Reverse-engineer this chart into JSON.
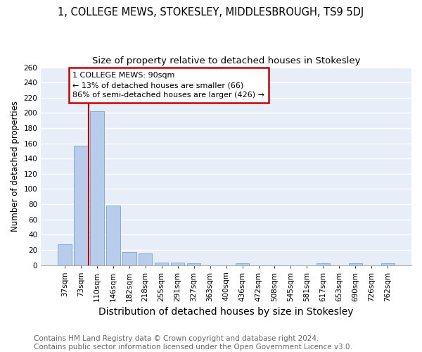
{
  "title1": "1, COLLEGE MEWS, STOKESLEY, MIDDLESBROUGH, TS9 5DJ",
  "title2": "Size of property relative to detached houses in Stokesley",
  "xlabel": "Distribution of detached houses by size in Stokesley",
  "ylabel": "Number of detached properties",
  "footnote": "Contains HM Land Registry data © Crown copyright and database right 2024.\nContains public sector information licensed under the Open Government Licence v3.0.",
  "bin_labels": [
    "37sqm",
    "73sqm",
    "110sqm",
    "146sqm",
    "182sqm",
    "218sqm",
    "255sqm",
    "291sqm",
    "327sqm",
    "363sqm",
    "400sqm",
    "436sqm",
    "472sqm",
    "508sqm",
    "545sqm",
    "581sqm",
    "617sqm",
    "653sqm",
    "690sqm",
    "726sqm",
    "762sqm"
  ],
  "bar_values": [
    27,
    157,
    202,
    78,
    17,
    15,
    3,
    3,
    2,
    0,
    0,
    2,
    0,
    0,
    0,
    0,
    2,
    0,
    2,
    0,
    2
  ],
  "bar_color": "#b8cceb",
  "bar_edge_color": "#6699cc",
  "vline_color": "#cc0000",
  "vline_x": 1.5,
  "annotation_text": "1 COLLEGE MEWS: 90sqm\n← 13% of detached houses are smaller (66)\n86% of semi-detached houses are larger (426) →",
  "annotation_box_color": "white",
  "annotation_box_edge": "#cc0000",
  "ylim": [
    0,
    260
  ],
  "yticks": [
    0,
    20,
    40,
    60,
    80,
    100,
    120,
    140,
    160,
    180,
    200,
    220,
    240,
    260
  ],
  "background_color": "#e8eef8",
  "grid_color": "white",
  "title1_fontsize": 10.5,
  "title2_fontsize": 9.5,
  "xlabel_fontsize": 10,
  "ylabel_fontsize": 8.5,
  "tick_fontsize": 7.5,
  "annot_fontsize": 8,
  "footnote_fontsize": 7.5
}
